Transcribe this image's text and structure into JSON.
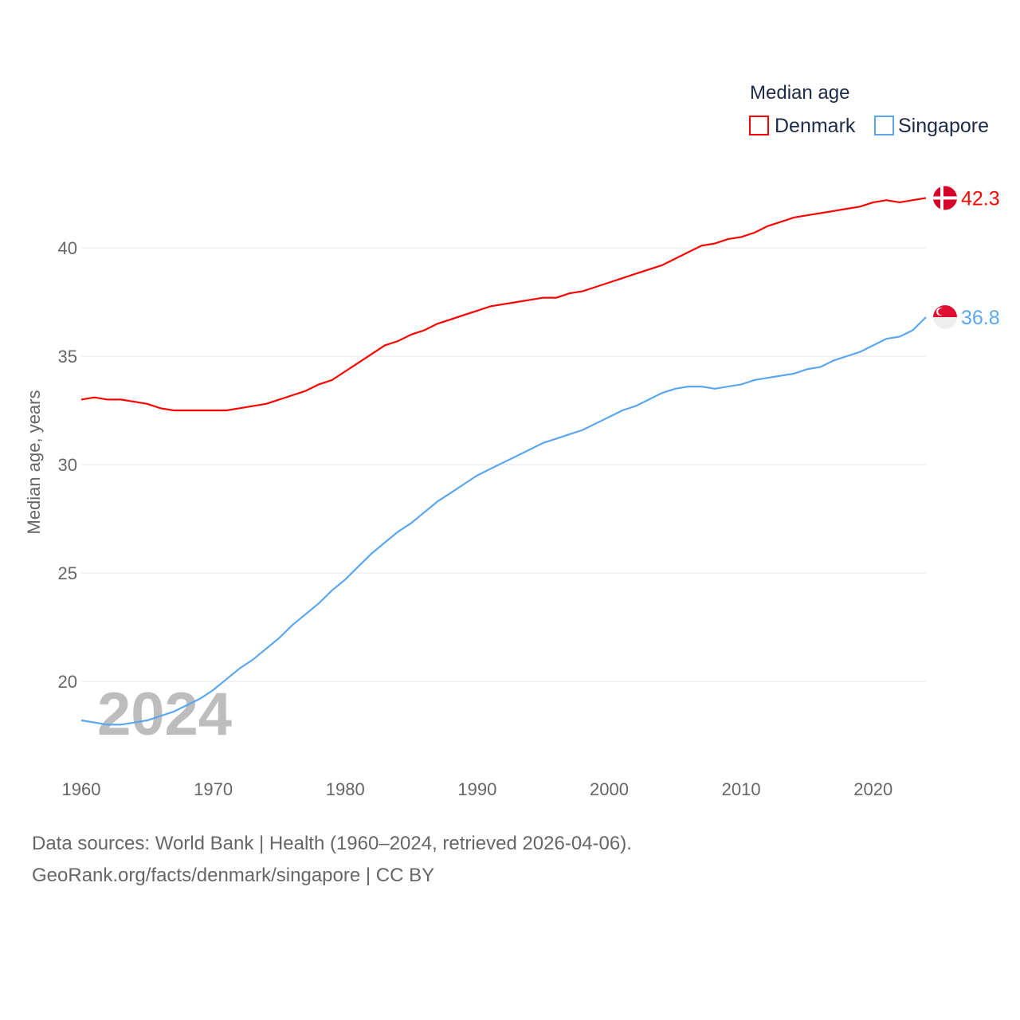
{
  "chart_data": {
    "type": "line",
    "title": "",
    "xlabel": "",
    "ylabel": "Median age, years",
    "xlim": [
      1960,
      2024
    ],
    "ylim": [
      17,
      43
    ],
    "x_ticks": [
      1960,
      1970,
      1980,
      1990,
      2000,
      2010,
      2020
    ],
    "y_ticks": [
      20,
      25,
      30,
      35,
      40
    ],
    "grid": true,
    "legend": {
      "title": "Median age",
      "placement": "top-right"
    },
    "year_label": "2024",
    "x": [
      1960,
      1961,
      1962,
      1963,
      1964,
      1965,
      1966,
      1967,
      1968,
      1969,
      1970,
      1971,
      1972,
      1973,
      1974,
      1975,
      1976,
      1977,
      1978,
      1979,
      1980,
      1981,
      1982,
      1983,
      1984,
      1985,
      1986,
      1987,
      1988,
      1989,
      1990,
      1991,
      1992,
      1993,
      1994,
      1995,
      1996,
      1997,
      1998,
      1999,
      2000,
      2001,
      2002,
      2003,
      2004,
      2005,
      2006,
      2007,
      2008,
      2009,
      2010,
      2011,
      2012,
      2013,
      2014,
      2015,
      2016,
      2017,
      2018,
      2019,
      2020,
      2021,
      2022,
      2023,
      2024
    ],
    "series": [
      {
        "name": "Denmark",
        "color": "#ff0000",
        "end_label": "42.3",
        "values": [
          33.0,
          33.1,
          33.0,
          33.0,
          32.9,
          32.8,
          32.6,
          32.5,
          32.5,
          32.5,
          32.5,
          32.5,
          32.6,
          32.7,
          32.8,
          33.0,
          33.2,
          33.4,
          33.7,
          33.9,
          34.3,
          34.7,
          35.1,
          35.5,
          35.7,
          36.0,
          36.2,
          36.5,
          36.7,
          36.9,
          37.1,
          37.3,
          37.4,
          37.5,
          37.6,
          37.7,
          37.7,
          37.9,
          38.0,
          38.2,
          38.4,
          38.6,
          38.8,
          39.0,
          39.2,
          39.5,
          39.8,
          40.1,
          40.2,
          40.4,
          40.5,
          40.7,
          41.0,
          41.2,
          41.4,
          41.5,
          41.6,
          41.7,
          41.8,
          41.9,
          42.1,
          42.2,
          42.1,
          42.2,
          42.3
        ]
      },
      {
        "name": "Singapore",
        "color": "#5ba7ee",
        "end_label": "36.8",
        "values": [
          18.2,
          18.1,
          18.0,
          18.0,
          18.1,
          18.2,
          18.4,
          18.6,
          18.9,
          19.2,
          19.6,
          20.1,
          20.6,
          21.0,
          21.5,
          22.0,
          22.6,
          23.1,
          23.6,
          24.2,
          24.7,
          25.3,
          25.9,
          26.4,
          26.9,
          27.3,
          27.8,
          28.3,
          28.7,
          29.1,
          29.5,
          29.8,
          30.1,
          30.4,
          30.7,
          31.0,
          31.2,
          31.4,
          31.6,
          31.9,
          32.2,
          32.5,
          32.7,
          33.0,
          33.3,
          33.5,
          33.6,
          33.6,
          33.5,
          33.6,
          33.7,
          33.9,
          34.0,
          34.1,
          34.2,
          34.4,
          34.5,
          34.8,
          35.0,
          35.2,
          35.5,
          35.8,
          35.9,
          36.2,
          36.8
        ]
      }
    ]
  },
  "footer": {
    "line1": "Data sources: World Bank | Health (1960–2024, retrieved 2026-04-06).",
    "line2": "GeoRank.org/facts/denmark/singapore | CC BY"
  }
}
